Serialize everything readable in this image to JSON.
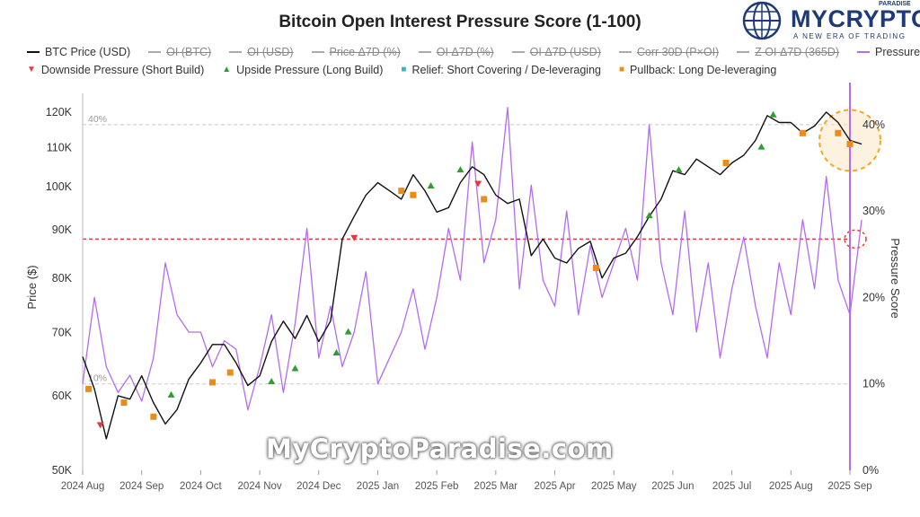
{
  "chart_data": {
    "type": "line",
    "title": "Bitcoin Open Interest Pressure Score (1-100)",
    "xlabel": "",
    "ylabel_left": "Price ($)",
    "ylabel_right": "Pressure Score",
    "x_tick_labels": [
      "2024 Aug",
      "2024 Sep",
      "2024 Oct",
      "2024 Nov",
      "2024 Dec",
      "2025 Jan",
      "2025 Feb",
      "2025 Mar",
      "2025 Apr",
      "2025 May",
      "2025 Jun",
      "2025 Jul",
      "2025 Aug",
      "2025 Sep"
    ],
    "y_left_tick_labels": [
      "50K",
      "60K",
      "70K",
      "80K",
      "90K",
      "100K",
      "110K",
      "120K"
    ],
    "y_left_ticks": [
      50000,
      60000,
      70000,
      80000,
      90000,
      100000,
      110000,
      120000
    ],
    "y_left_scale": "log",
    "y_left_range": [
      50000,
      124000
    ],
    "y_right_tick_labels": [
      "0%",
      "10%",
      "20%",
      "30%",
      "40%"
    ],
    "y_right_ticks": [
      0,
      10,
      20,
      30,
      40
    ],
    "y_right_range": [
      0,
      43
    ],
    "reference_lines": [
      {
        "label": "40%",
        "value": 40,
        "axis": "right",
        "style": "dashed-gray"
      },
      {
        "label": "10%",
        "value": 10,
        "axis": "right",
        "style": "dashed-gray"
      },
      {
        "value": 88000,
        "axis": "left",
        "style": "dashed-red"
      }
    ],
    "grid": false,
    "legend_position": "top",
    "legend": [
      {
        "label": "BTC Price (USD)",
        "kind": "line",
        "color": "#111111",
        "active": true
      },
      {
        "label": "OI (BTC)",
        "kind": "line",
        "color": "#999999",
        "active": false
      },
      {
        "label": "OI (USD)",
        "kind": "line",
        "color": "#999999",
        "active": false
      },
      {
        "label": "Price Δ7D (%)",
        "kind": "line",
        "color": "#999999",
        "active": false
      },
      {
        "label": "OI Δ7D (%)",
        "kind": "line",
        "color": "#999999",
        "active": false
      },
      {
        "label": "OI Δ7D (USD)",
        "kind": "line",
        "color": "#999999",
        "active": false
      },
      {
        "label": "Corr 30D (P×OI)",
        "kind": "line",
        "color": "#999999",
        "active": false
      },
      {
        "label": "Z OI Δ7D (365D)",
        "kind": "line",
        "color": "#999999",
        "active": false
      },
      {
        "label": "Pressure Score",
        "kind": "line",
        "color": "#b36cf0",
        "active": true
      },
      {
        "label": "Downside Pressure (Short Build)",
        "kind": "marker",
        "glyph": "▼",
        "color": "#e53935",
        "active": true
      },
      {
        "label": "Upside Pressure (Long Build)",
        "kind": "marker",
        "glyph": "▲",
        "color": "#2e9e2e",
        "active": true
      },
      {
        "label": "Relief: Short Covering / De-leveraging",
        "kind": "marker",
        "glyph": "■",
        "color": "#2bbbc9",
        "active": true
      },
      {
        "label": "Pullback: Long De-leveraging",
        "kind": "marker",
        "glyph": "■",
        "color": "#ef8a17",
        "active": true
      }
    ],
    "series": [
      {
        "name": "BTC Price (USD)",
        "axis": "left",
        "color": "#111111",
        "x": [
          0,
          0.2,
          0.4,
          0.6,
          0.8,
          1.0,
          1.2,
          1.4,
          1.6,
          1.8,
          2.0,
          2.2,
          2.4,
          2.6,
          2.8,
          3.0,
          3.2,
          3.4,
          3.6,
          3.8,
          4.0,
          4.2,
          4.4,
          4.6,
          4.8,
          5.0,
          5.2,
          5.4,
          5.6,
          5.8,
          6.0,
          6.2,
          6.4,
          6.6,
          6.8,
          7.0,
          7.2,
          7.4,
          7.6,
          7.8,
          8.0,
          8.2,
          8.4,
          8.6,
          8.8,
          9.0,
          9.2,
          9.4,
          9.6,
          9.8,
          10.0,
          10.2,
          10.4,
          10.6,
          10.8,
          11.0,
          11.2,
          11.4,
          11.6,
          11.8,
          12.0,
          12.2,
          12.4,
          12.6,
          12.8,
          13.0,
          13.2
        ],
        "values": [
          66000,
          61000,
          54000,
          60000,
          59500,
          63000,
          59000,
          56000,
          58000,
          62500,
          65000,
          68000,
          68000,
          65000,
          61500,
          63000,
          68500,
          72000,
          69000,
          73000,
          68500,
          72000,
          88000,
          93000,
          98000,
          101000,
          99000,
          97000,
          103000,
          99000,
          94000,
          95000,
          101000,
          105000,
          103000,
          98000,
          96000,
          97000,
          84500,
          88000,
          84000,
          83000,
          86000,
          87500,
          80000,
          84000,
          85000,
          88500,
          93000,
          97000,
          104000,
          103000,
          107000,
          105000,
          103000,
          106000,
          108000,
          112000,
          119000,
          117000,
          117000,
          114000,
          116000,
          120000,
          117000,
          112000,
          111000
        ]
      },
      {
        "name": "Pressure Score",
        "axis": "right",
        "color": "#b36cf0",
        "x": [
          0,
          0.2,
          0.4,
          0.6,
          0.8,
          1.0,
          1.2,
          1.4,
          1.6,
          1.8,
          2.0,
          2.2,
          2.4,
          2.6,
          2.8,
          3.0,
          3.2,
          3.4,
          3.6,
          3.8,
          4.0,
          4.2,
          4.4,
          4.6,
          4.8,
          5.0,
          5.2,
          5.4,
          5.6,
          5.8,
          6.0,
          6.2,
          6.4,
          6.6,
          6.8,
          7.0,
          7.2,
          7.4,
          7.6,
          7.8,
          8.0,
          8.2,
          8.4,
          8.6,
          8.8,
          9.0,
          9.2,
          9.4,
          9.6,
          9.8,
          10.0,
          10.2,
          10.4,
          10.6,
          10.8,
          11.0,
          11.2,
          11.4,
          11.6,
          11.8,
          12.0,
          12.2,
          12.4,
          12.6,
          12.8,
          13.0,
          13.2
        ],
        "values": [
          10,
          20,
          12,
          9,
          11,
          8,
          13,
          24,
          18,
          16,
          16,
          12,
          15,
          14,
          7,
          12,
          18,
          9,
          17,
          28,
          13,
          19,
          12,
          16,
          23,
          10,
          13,
          16,
          21,
          14,
          20,
          28,
          22,
          38,
          24,
          29,
          42,
          21,
          33,
          22,
          19,
          30,
          18,
          26,
          20,
          24,
          28,
          22,
          40,
          24,
          18,
          30,
          16,
          24,
          13,
          21,
          27,
          19,
          13,
          24,
          18,
          29,
          21,
          34,
          22,
          18,
          29
        ]
      }
    ],
    "markers": [
      {
        "series": "Upside Pressure (Long Build)",
        "x": [
          1.5,
          3.2,
          3.6,
          4.3,
          4.5,
          5.9,
          6.4,
          9.6,
          10.1,
          11.5,
          11.7
        ],
        "values": [
          60000,
          62000,
          64000,
          66500,
          70000,
          100000,
          104000,
          93000,
          104000,
          110000,
          119000
        ]
      },
      {
        "series": "Pullback: Long De-leveraging",
        "x": [
          0.1,
          0.7,
          1.2,
          2.2,
          2.5,
          5.4,
          5.6,
          6.8,
          8.7,
          10.9,
          12.2,
          12.8,
          13.0
        ],
        "values": [
          61000,
          59000,
          57000,
          62000,
          63500,
          99000,
          98000,
          97000,
          82000,
          106000,
          114000,
          114000,
          111000
        ]
      },
      {
        "series": "Downside Pressure (Short Build)",
        "x": [
          0.3,
          4.6,
          6.7
        ],
        "values": [
          56000,
          88500,
          101000
        ]
      }
    ]
  },
  "logo": {
    "name": "MYCRYPTO",
    "superscript": "PARADISE",
    "tagline": "A NEW ERA OF TRADING"
  },
  "watermark": "MyCryptoParadise.com",
  "colors": {
    "price": "#111111",
    "pressure": "#b36cf0",
    "downside": "#e53935",
    "upside": "#2e9e2e",
    "relief": "#2bbbc9",
    "pullback": "#ef8a17",
    "threshold": "#e53935",
    "highlight": "#f5a623",
    "brand": "#1e3a78"
  }
}
